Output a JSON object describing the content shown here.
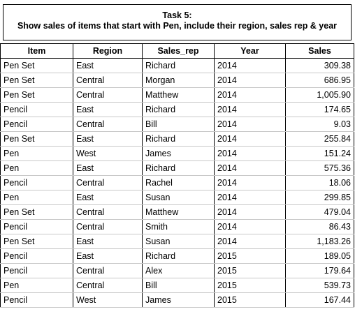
{
  "title": {
    "line1": "Task 5:",
    "line2": "Show sales of items that start with Pen, include their region, sales rep & year"
  },
  "table": {
    "headers": [
      "Item",
      "Region",
      "Sales_rep",
      "Year",
      "Sales"
    ],
    "rows": [
      [
        "Pen Set",
        "East",
        "Richard",
        "2014",
        "309.38"
      ],
      [
        "Pen Set",
        "Central",
        "Morgan",
        "2014",
        "686.95"
      ],
      [
        "Pen Set",
        "Central",
        "Matthew",
        "2014",
        "1,005.90"
      ],
      [
        "Pencil",
        "East",
        "Richard",
        "2014",
        "174.65"
      ],
      [
        "Pencil",
        "Central",
        "Bill",
        "2014",
        "9.03"
      ],
      [
        "Pen Set",
        "East",
        "Richard",
        "2014",
        "255.84"
      ],
      [
        "Pen",
        "West",
        "James",
        "2014",
        "151.24"
      ],
      [
        "Pen",
        "East",
        "Richard",
        "2014",
        "575.36"
      ],
      [
        "Pencil",
        "Central",
        "Rachel",
        "2014",
        "18.06"
      ],
      [
        "Pen",
        "East",
        "Susan",
        "2014",
        "299.85"
      ],
      [
        "Pen Set",
        "Central",
        "Matthew",
        "2014",
        "479.04"
      ],
      [
        "Pencil",
        "Central",
        "Smith",
        "2014",
        "86.43"
      ],
      [
        "Pen Set",
        "East",
        "Susan",
        "2014",
        "1,183.26"
      ],
      [
        "Pencil",
        "East",
        "Richard",
        "2015",
        "189.05"
      ],
      [
        "Pencil",
        "Central",
        "Alex",
        "2015",
        "179.64"
      ],
      [
        "Pen",
        "Central",
        "Bill",
        "2015",
        "539.73"
      ],
      [
        "Pencil",
        "West",
        "James",
        "2015",
        "167.44"
      ]
    ]
  }
}
